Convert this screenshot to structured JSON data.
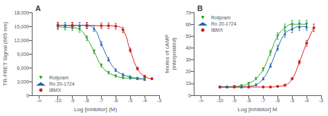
{
  "chart_data": [
    {
      "type": "line",
      "title": "A",
      "xlabel": "Log [inhibitor] (M)",
      "ylabel": "TR-FRET Signal (665 nm)",
      "xlim": [
        -11.8,
        -3.0
      ],
      "xticks": [
        {
          "value": -11.3,
          "label": "-∞"
        },
        -10,
        -9,
        -8,
        -7,
        -6,
        -5,
        -4,
        -3
      ],
      "ylim": [
        0,
        18000
      ],
      "yticks": [
        0,
        {
          "value": 3000,
          "label": "3,000"
        },
        {
          "value": 6000,
          "label": "6,000"
        },
        {
          "value": 9000,
          "label": "9,000"
        },
        {
          "value": 12000,
          "label": "12,000"
        },
        {
          "value": 15000,
          "label": "15,000"
        },
        {
          "value": 18000,
          "label": "18,000"
        }
      ],
      "grid": false,
      "legend": "lower left",
      "series": [
        {
          "name": "Rolipram",
          "color": "#29a329",
          "marker": "triangle-down",
          "x": [
            -10,
            -9.5,
            -9,
            -8.5,
            -8,
            -7.5,
            -7,
            -6.5,
            -6,
            -5.5,
            -5,
            -4.5,
            -4
          ],
          "values": [
            14900,
            14800,
            14700,
            14300,
            12400,
            9500,
            6500,
            4900,
            4200,
            3800,
            3700,
            3600,
            3500
          ],
          "errors": [
            621.5,
            618,
            614.5,
            600.5,
            534,
            432.5,
            327.5,
            271.5,
            247,
            233,
            229.5,
            226,
            222.5
          ]
        },
        {
          "name": "Ro 20-1724",
          "color": "#2563b0",
          "marker": "triangle-up",
          "x": [
            -10,
            -9.5,
            -9,
            -8.5,
            -8,
            -7.5,
            -7,
            -6.5,
            -6,
            -5.5,
            -5,
            -4.5,
            -4
          ],
          "values": [
            15200,
            15200,
            15100,
            15200,
            15100,
            14500,
            11200,
            7800,
            5500,
            4500,
            4000,
            3700,
            3500
          ],
          "errors": [
            632,
            632,
            628.5,
            632,
            628.5,
            607.5,
            492,
            373,
            292.5,
            257.5,
            240,
            229.5,
            222.5
          ]
        },
        {
          "name": "IBMX",
          "color": "#cc2222",
          "marker": "circle",
          "x": [
            -10,
            -9,
            -8,
            -7,
            -6.5,
            -6,
            -5.5,
            -5,
            -4.5,
            -4,
            -3.5
          ],
          "values": [
            15200,
            15200,
            15200,
            15100,
            15100,
            15000,
            14200,
            9800,
            5800,
            4100,
            3600
          ],
          "errors": [
            632,
            632,
            632,
            628.5,
            628.5,
            625,
            597,
            443,
            303,
            243.5,
            226
          ]
        }
      ]
    },
    {
      "type": "line",
      "title": "B",
      "xlabel": "Log [inhibitor] M",
      "ylabel": "fmoles of cAMP\n(interpolated)",
      "xlim": [
        -11.8,
        -3.0
      ],
      "xticks": [
        {
          "value": -11.3,
          "label": "-∞"
        },
        -10,
        -9,
        -8,
        -7,
        -6,
        -5,
        -4,
        -3
      ],
      "ylim": [
        0,
        70
      ],
      "yticks": [
        0,
        10,
        20,
        30,
        40,
        50,
        60,
        70
      ],
      "grid": false,
      "legend": "upper left",
      "series": [
        {
          "name": "Rolipram",
          "color": "#29a329",
          "marker": "triangle-down",
          "x": [
            -10,
            -9.5,
            -9,
            -8.5,
            -8,
            -7.5,
            -7,
            -6.5,
            -6,
            -5.5,
            -5,
            -4.5,
            -4
          ],
          "values": [
            7,
            7,
            7.5,
            8,
            10,
            14,
            22,
            36,
            50,
            57,
            60,
            60,
            60
          ],
          "errors": [
            0.65,
            0.65,
            0.675,
            0.7,
            0.8,
            1.0,
            1.4,
            2.1,
            2.8,
            3.15,
            3.3,
            3.3,
            3.3
          ]
        },
        {
          "name": "Ro 20-1724",
          "color": "#2563b0",
          "marker": "triangle-up",
          "x": [
            -10,
            -9.5,
            -9,
            -8.5,
            -8,
            -7.5,
            -7,
            -6.5,
            -6,
            -5.5,
            -5,
            -4.5,
            -4
          ],
          "values": [
            7,
            7,
            7,
            7,
            7.5,
            9,
            14,
            25,
            40,
            52,
            56,
            58,
            58
          ],
          "errors": [
            0.65,
            0.65,
            0.65,
            0.65,
            0.675,
            0.75,
            1.0,
            1.55,
            2.3,
            2.9,
            3.1,
            3.2,
            3.2
          ]
        },
        {
          "name": "IBMX",
          "color": "#cc2222",
          "marker": "circle",
          "x": [
            -10,
            -9,
            -8,
            -7,
            -6.5,
            -6,
            -5.5,
            -5,
            -4.5,
            -4,
            -3.5
          ],
          "values": [
            7,
            7,
            7,
            7,
            7,
            7.5,
            8.5,
            14,
            28,
            44,
            57
          ],
          "errors": [
            0.65,
            0.65,
            0.65,
            0.65,
            0.65,
            0.675,
            0.725,
            1.0,
            1.7,
            2.5,
            3.15
          ]
        }
      ]
    }
  ]
}
